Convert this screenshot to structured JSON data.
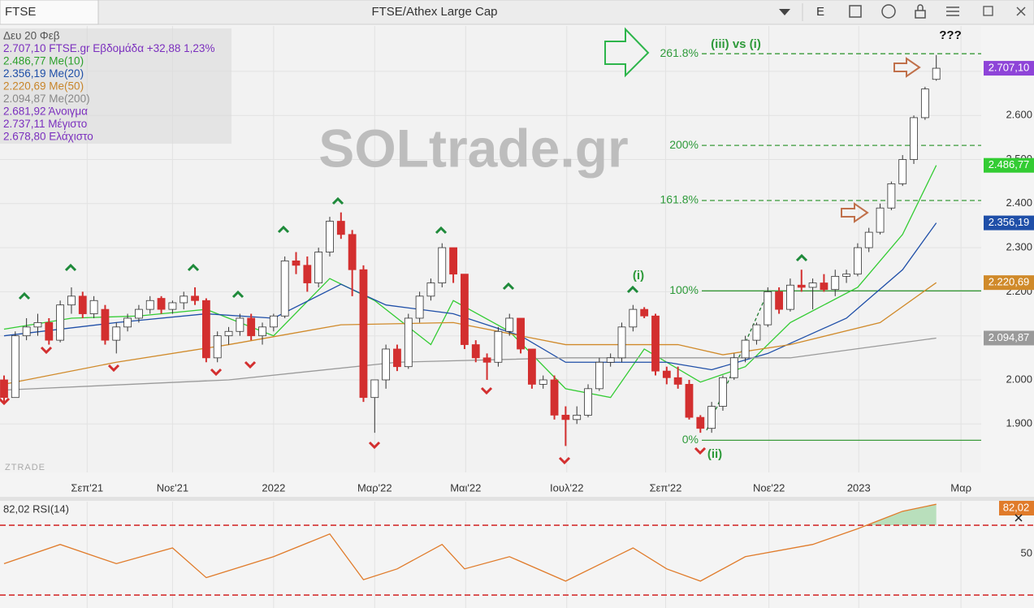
{
  "toolbar": {
    "symbol": "FTSE",
    "title": "FTSE/Athex Large Cap",
    "mode": "E"
  },
  "chart_data": [
    {
      "type": "candlestick",
      "watermark": "SOLtrade.gr",
      "brand": "ZTRADE",
      "legend_lines": [
        {
          "text": "Δευ 20 Φεβ",
          "color": "#555555"
        },
        {
          "text": "2.707,10 FTSE.gr Εβδομάδα +32,88 1,23%",
          "color": "#7b2fbe"
        },
        {
          "text": "2.486,77 Me(10)",
          "color": "#2ca02c"
        },
        {
          "text": "2.356,19 Me(20)",
          "color": "#1f4fa8"
        },
        {
          "text": "2.220,69 Me(50)",
          "color": "#c8852a"
        },
        {
          "text": "2.094,87 Me(200)",
          "color": "#888888"
        },
        {
          "text": "2.681,92 Άνοιγμα",
          "color": "#7b2fbe"
        },
        {
          "text": "2.737,11 Μέγιστο",
          "color": "#7b2fbe"
        },
        {
          "text": "2.678,80 Ελάχιστο",
          "color": "#7b2fbe"
        }
      ],
      "xlim": [
        -0.36,
        87
      ],
      "xticks": [
        {
          "value": 7.4,
          "label": "Σεπ'21"
        },
        {
          "value": 15,
          "label": "Νοε'21"
        },
        {
          "value": 24,
          "label": "2022"
        },
        {
          "value": 33,
          "label": "Μαρ'22"
        },
        {
          "value": 41.1,
          "label": "Μαι'22"
        },
        {
          "value": 50.1,
          "label": "Ιουλ'22"
        },
        {
          "value": 58.9,
          "label": "Σεπ'22"
        },
        {
          "value": 68.1,
          "label": "Νοε'22"
        },
        {
          "value": 76.1,
          "label": "2023"
        },
        {
          "value": 85.2,
          "label": "Μαρ"
        }
      ],
      "ylim": [
        1790,
        2803
      ],
      "yticks": [
        {
          "value": 1900,
          "label": "1.900"
        },
        {
          "value": 2000,
          "label": "2.000"
        },
        {
          "value": 2100,
          "label": "2.100"
        },
        {
          "value": 2200,
          "label": "2.200"
        },
        {
          "value": 2300,
          "label": "2.300"
        },
        {
          "value": 2400,
          "label": "2.400"
        },
        {
          "value": 2500,
          "label": "2.500"
        },
        {
          "value": 2600,
          "label": "2.600"
        },
        {
          "value": 2700,
          "label": "2.700"
        }
      ],
      "grid": true,
      "candles": {
        "color_up": "#ffffff",
        "color_down": "#d32f2f",
        "tag_color": "#8e44d8",
        "last_label": "2.707,10",
        "ohlc": [
          [
            2000,
            2010,
            1950,
            1960
          ],
          [
            1960,
            2110,
            1960,
            2100
          ],
          [
            2100,
            2140,
            2090,
            2120
          ],
          [
            2120,
            2150,
            2100,
            2130
          ],
          [
            2130,
            2140,
            2080,
            2090
          ],
          [
            2090,
            2180,
            2085,
            2170
          ],
          [
            2170,
            2210,
            2150,
            2190
          ],
          [
            2190,
            2200,
            2140,
            2150
          ],
          [
            2150,
            2190,
            2140,
            2180
          ],
          [
            2160,
            2170,
            2080,
            2090
          ],
          [
            2090,
            2130,
            2060,
            2120
          ],
          [
            2120,
            2150,
            2110,
            2140
          ],
          [
            2140,
            2170,
            2130,
            2160
          ],
          [
            2160,
            2190,
            2150,
            2180
          ],
          [
            2185,
            2190,
            2150,
            2160
          ],
          [
            2160,
            2180,
            2150,
            2175
          ],
          [
            2175,
            2200,
            2160,
            2190
          ],
          [
            2190,
            2210,
            2170,
            2180
          ],
          [
            2180,
            2185,
            2040,
            2050
          ],
          [
            2050,
            2110,
            2040,
            2100
          ],
          [
            2100,
            2120,
            2080,
            2110
          ],
          [
            2110,
            2150,
            2100,
            2140
          ],
          [
            2140,
            2150,
            2090,
            2100
          ],
          [
            2100,
            2130,
            2080,
            2120
          ],
          [
            2120,
            2150,
            2110,
            2145
          ],
          [
            2145,
            2280,
            2140,
            2270
          ],
          [
            2270,
            2290,
            2240,
            2260
          ],
          [
            2260,
            2280,
            2200,
            2220
          ],
          [
            2220,
            2300,
            2210,
            2290
          ],
          [
            2290,
            2370,
            2280,
            2360
          ],
          [
            2360,
            2380,
            2320,
            2330
          ],
          [
            2330,
            2340,
            2190,
            2250
          ],
          [
            2250,
            2260,
            1950,
            1960
          ],
          [
            1960,
            2000,
            1880,
            2000
          ],
          [
            2000,
            2080,
            1980,
            2070
          ],
          [
            2070,
            2080,
            2020,
            2030
          ],
          [
            2030,
            2150,
            2025,
            2140
          ],
          [
            2140,
            2200,
            2130,
            2190
          ],
          [
            2190,
            2230,
            2180,
            2220
          ],
          [
            2220,
            2310,
            2210,
            2300
          ],
          [
            2300,
            2300,
            2220,
            2240
          ],
          [
            2240,
            2240,
            2070,
            2080
          ],
          [
            2080,
            2090,
            2040,
            2050
          ],
          [
            2050,
            2060,
            2000,
            2040
          ],
          [
            2040,
            2120,
            2030,
            2110
          ],
          [
            2110,
            2150,
            2100,
            2140
          ],
          [
            2140,
            2140,
            2060,
            2070
          ],
          [
            2070,
            2070,
            1980,
            1990
          ],
          [
            1990,
            2010,
            1980,
            2000
          ],
          [
            2000,
            2010,
            1910,
            1920
          ],
          [
            1920,
            1940,
            1850,
            1910
          ],
          [
            1910,
            1940,
            1900,
            1920
          ],
          [
            1920,
            1990,
            1915,
            1980
          ],
          [
            1980,
            2050,
            1975,
            2040
          ],
          [
            2040,
            2060,
            2030,
            2050
          ],
          [
            2050,
            2130,
            2040,
            2120
          ],
          [
            2120,
            2170,
            2110,
            2160
          ],
          [
            2160,
            2165,
            2140,
            2145
          ],
          [
            2145,
            2150,
            2010,
            2020
          ],
          [
            2020,
            2030,
            1990,
            2005
          ],
          [
            2005,
            2030,
            1980,
            1990
          ],
          [
            1990,
            2000,
            1910,
            1915
          ],
          [
            1915,
            1920,
            1880,
            1890
          ],
          [
            1890,
            1950,
            1880,
            1940
          ],
          [
            1940,
            2010,
            1930,
            2005
          ],
          [
            2005,
            2060,
            2000,
            2050
          ],
          [
            2050,
            2100,
            2040,
            2090
          ],
          [
            2090,
            2130,
            2080,
            2125
          ],
          [
            2125,
            2210,
            2120,
            2200
          ],
          [
            2200,
            2210,
            2150,
            2160
          ],
          [
            2160,
            2230,
            2155,
            2215
          ],
          [
            2215,
            2250,
            2200,
            2210
          ],
          [
            2210,
            2230,
            2160,
            2220
          ],
          [
            2220,
            2240,
            2200,
            2205
          ],
          [
            2205,
            2250,
            2190,
            2235
          ],
          [
            2235,
            2250,
            2220,
            2240
          ],
          [
            2240,
            2310,
            2235,
            2300
          ],
          [
            2300,
            2345,
            2290,
            2335
          ],
          [
            2335,
            2400,
            2330,
            2390
          ],
          [
            2390,
            2450,
            2385,
            2445
          ],
          [
            2445,
            2510,
            2440,
            2500
          ],
          [
            2500,
            2600,
            2490,
            2595
          ],
          [
            2595,
            2665,
            2590,
            2660
          ],
          [
            2681.92,
            2737.11,
            2678.8,
            2707.1
          ]
        ]
      },
      "series": [
        {
          "name": "Me(10)",
          "color": "#33cc33",
          "last_label": "2.486,77",
          "x": [
            0,
            6,
            12,
            18,
            24,
            29,
            33,
            38,
            40,
            45,
            50,
            54,
            57,
            62,
            66,
            70,
            76,
            80,
            83
          ],
          "values": [
            2115,
            2140,
            2145,
            2160,
            2100,
            2230,
            2180,
            2080,
            2180,
            2110,
            1980,
            1960,
            2070,
            1995,
            2030,
            2130,
            2210,
            2330,
            2486.77
          ]
        },
        {
          "name": "Me(20)",
          "color": "#1f4fa8",
          "last_label": "2.356,19",
          "x": [
            0,
            10,
            18,
            24,
            30,
            34,
            40,
            46,
            50,
            55,
            59,
            63,
            68,
            75,
            80,
            83
          ],
          "values": [
            2100,
            2130,
            2150,
            2140,
            2217,
            2170,
            2150,
            2100,
            2040,
            2040,
            2040,
            2023,
            2060,
            2140,
            2250,
            2356.19
          ]
        },
        {
          "name": "Me(50)",
          "color": "#d08a2a",
          "last_label": "2.220,69",
          "x": [
            0,
            10,
            20,
            30,
            40,
            50,
            60,
            64,
            70,
            78,
            83
          ],
          "values": [
            1990,
            2040,
            2080,
            2125,
            2130,
            2080,
            2080,
            2057,
            2080,
            2130,
            2220.69
          ]
        },
        {
          "name": "Me(200)",
          "color": "#9a9a9a",
          "last_label": "2.094,87",
          "x": [
            0,
            20,
            35,
            50,
            60,
            70,
            83
          ],
          "values": [
            1977,
            2000,
            2040,
            2050,
            2050,
            2050,
            2094.87
          ]
        }
      ],
      "fib_levels": [
        {
          "label": "261.8%",
          "value": 2740,
          "dashed": true
        },
        {
          "label": "200%",
          "value": 2532,
          "dashed": true
        },
        {
          "label": "161.8%",
          "value": 2407,
          "dashed": true
        },
        {
          "label": "100%",
          "value": 2202,
          "dashed": false
        },
        {
          "label": "0%",
          "value": 1863,
          "dashed": false
        }
      ],
      "annotations": [
        {
          "text": "(iii) vs (i)"
        },
        {
          "text": "???"
        },
        {
          "text": "(i)"
        },
        {
          "text": "(ii)"
        }
      ]
    },
    {
      "type": "line",
      "title": "82,02 RSI(14)",
      "color": "#e07b2a",
      "last_label": "82,02",
      "ylim": [
        22.6,
        83.5
      ],
      "yticks": [
        50
      ],
      "levels": [
        70,
        30
      ],
      "x": [
        0,
        5,
        10,
        15,
        18,
        24,
        29,
        32,
        35,
        39,
        41,
        45,
        50,
        56,
        59,
        62,
        66,
        72,
        76,
        80,
        83
      ],
      "values": [
        48,
        59,
        48,
        57,
        40,
        52,
        65,
        38.8,
        45,
        59,
        45,
        52,
        38,
        57,
        45,
        38,
        52,
        59,
        68,
        78,
        82.02
      ]
    }
  ]
}
